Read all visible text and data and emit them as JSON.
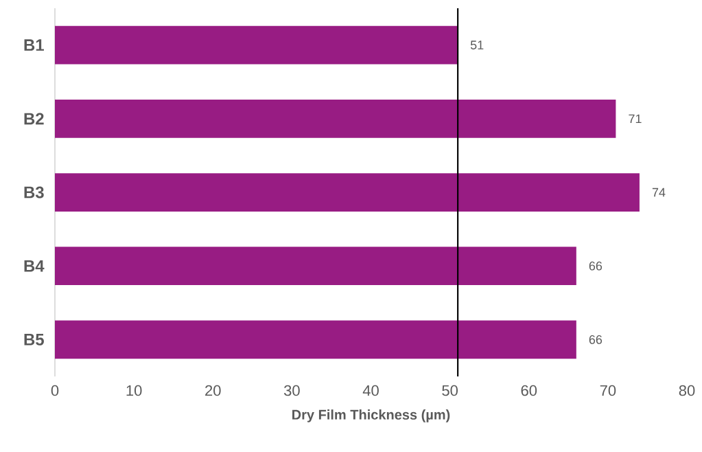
{
  "chart_data": {
    "type": "bar",
    "orientation": "horizontal",
    "xlabel": "Dry Film Thickness (µm)",
    "categories": [
      "B1",
      "B2",
      "B3",
      "B4",
      "B5"
    ],
    "values": [
      51,
      71,
      74,
      66,
      66
    ],
    "color": "#981c83",
    "data_labels": true,
    "xlim": [
      0,
      80
    ],
    "xticks": [
      0,
      10,
      20,
      30,
      40,
      50,
      60,
      70,
      80
    ],
    "ref_lines": [
      {
        "axis": "x",
        "value": 51,
        "color": "#000000"
      }
    ]
  }
}
